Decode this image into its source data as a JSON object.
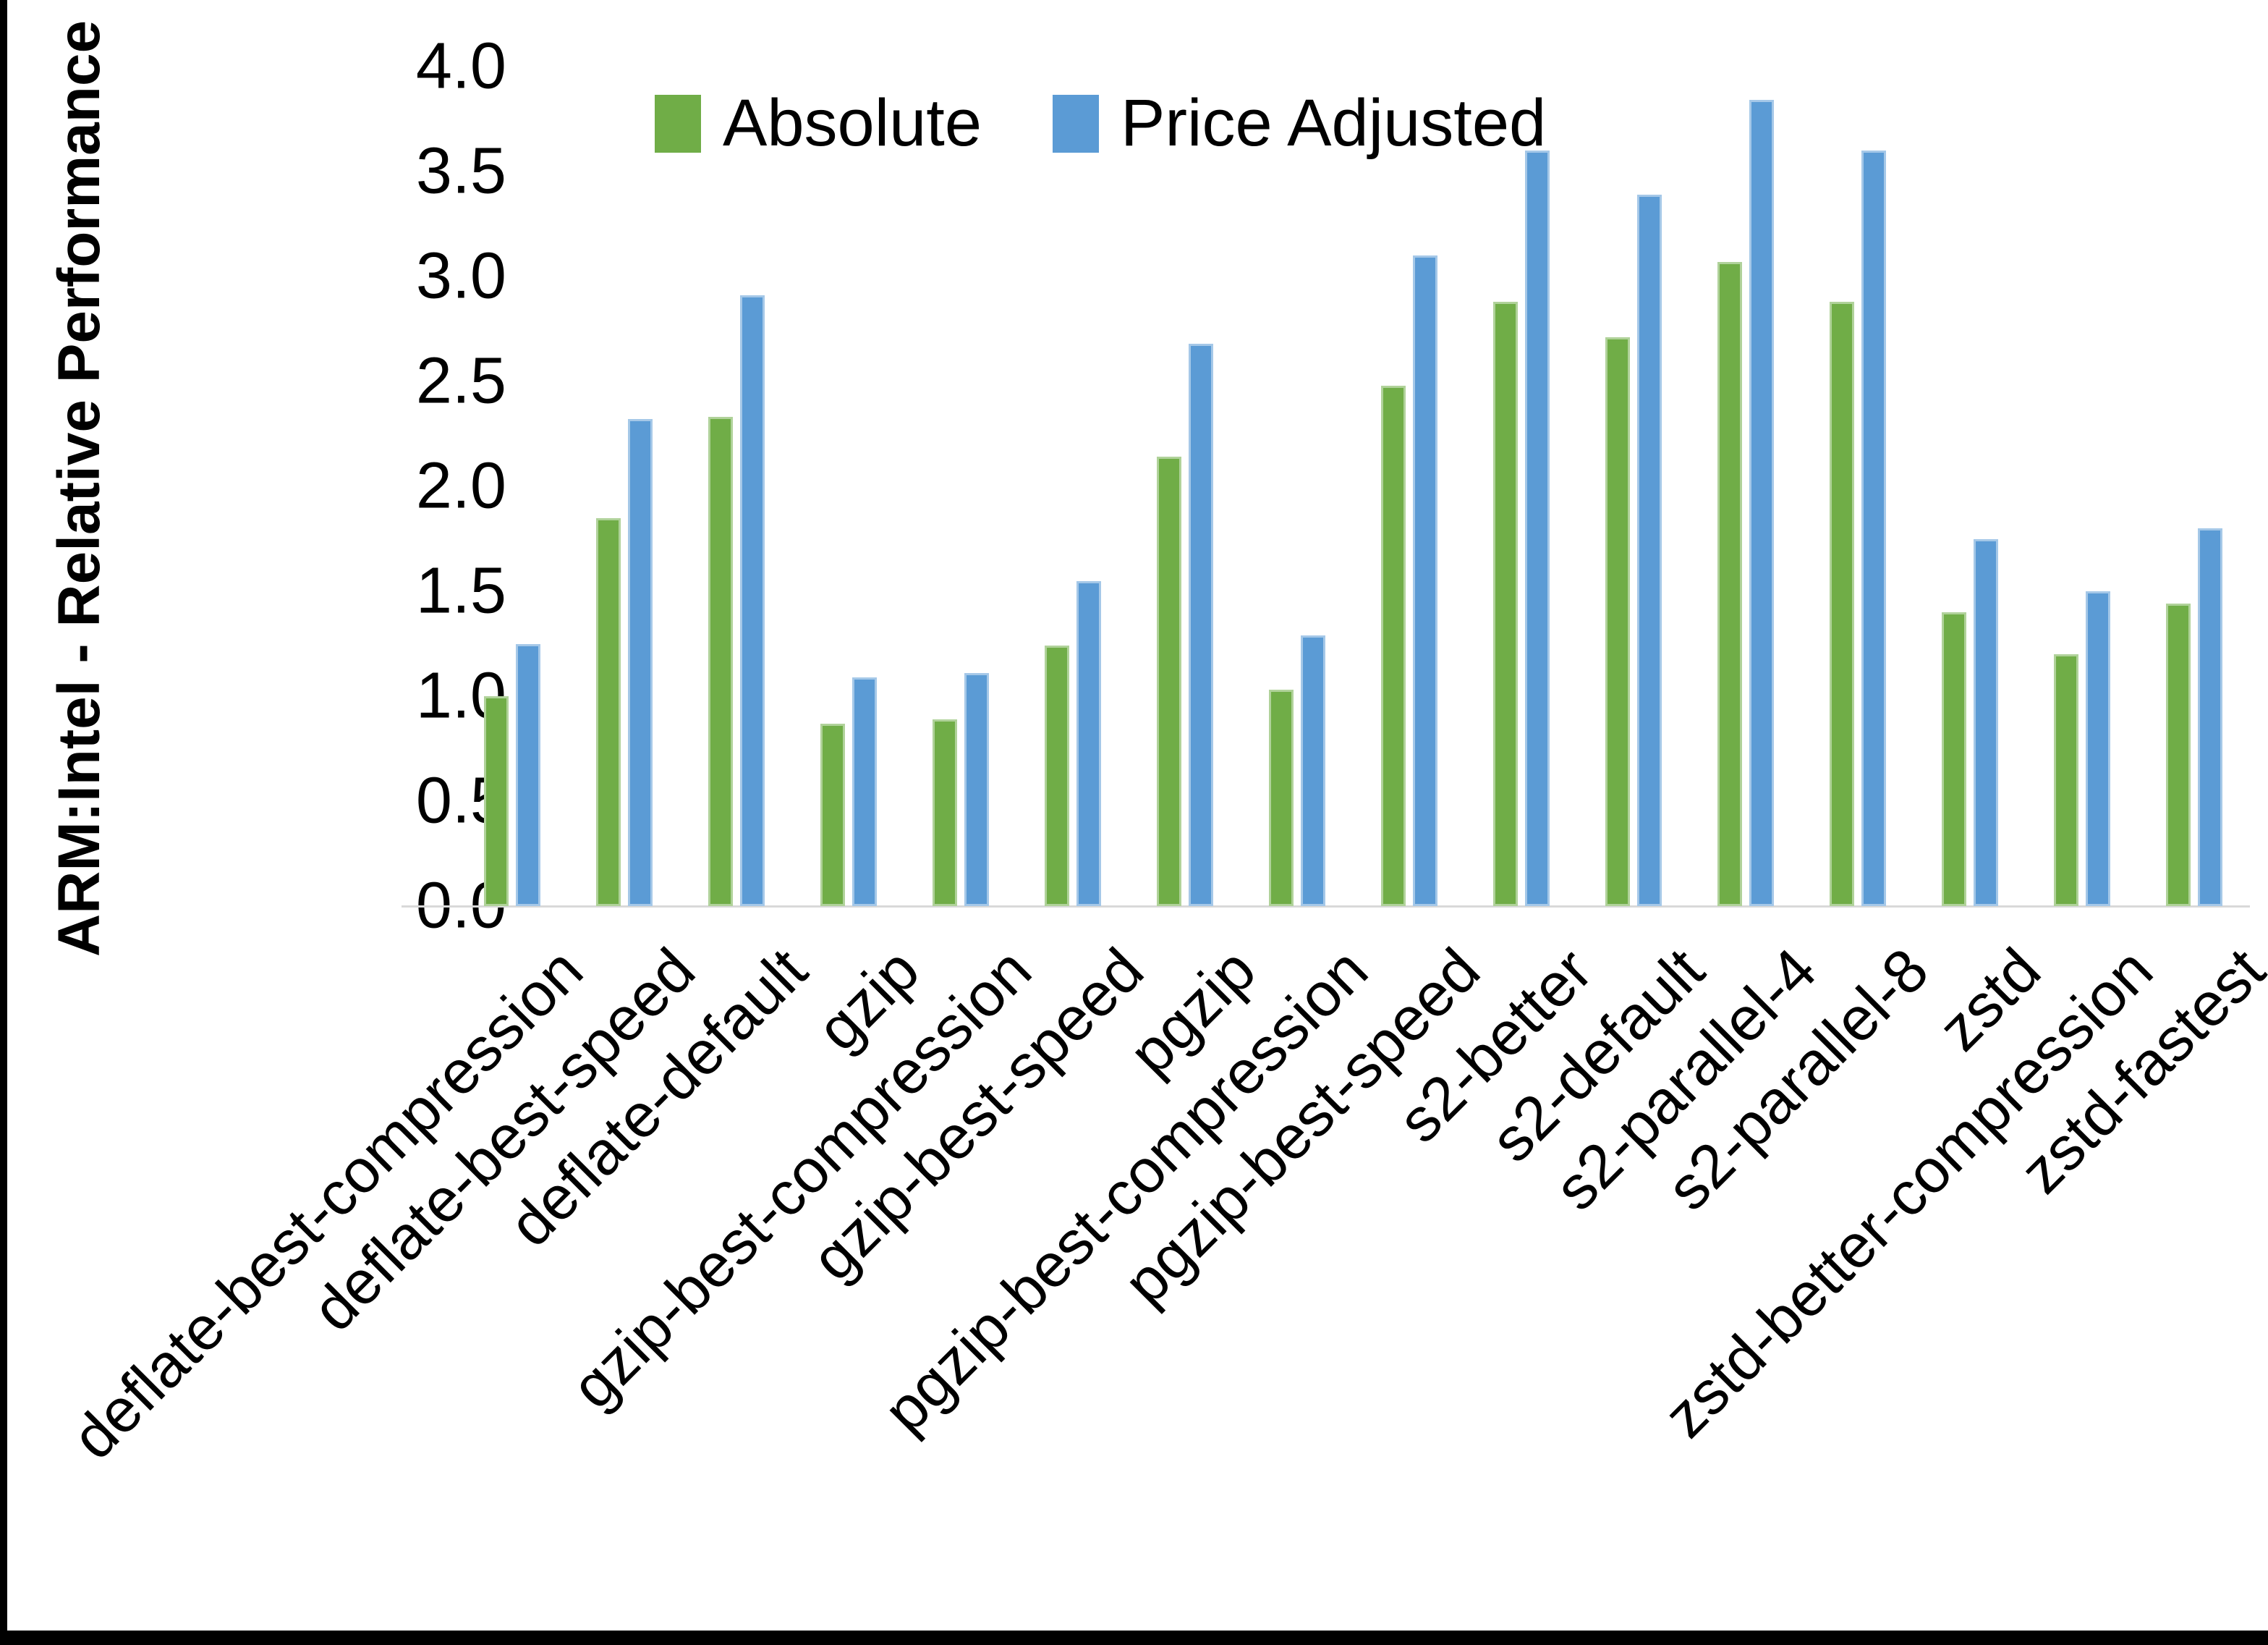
{
  "y_axis": {
    "title": "ARM:Intel - Relative Performance",
    "tick_labels": [
      "4.0",
      "3.5",
      "3.0",
      "2.5",
      "2.0",
      "1.5",
      "1.0",
      "0.5",
      "0.0"
    ]
  },
  "legend": {
    "items": [
      {
        "label": "Absolute",
        "color": "#70AD47"
      },
      {
        "label": "Price Adjusted",
        "color": "#5B9BD5"
      }
    ]
  },
  "colors": {
    "absolute": "#70AD47",
    "price_adjusted": "#5B9BD5",
    "axis_line": "#d9d9d9",
    "frame": "#000000"
  },
  "chart_data": {
    "type": "bar",
    "title": "",
    "xlabel": "",
    "ylabel": "ARM:Intel - Relative Performance",
    "ylim": [
      0.0,
      4.0
    ],
    "ytick_step": 0.5,
    "grid": false,
    "legend_position": "top",
    "categories": [
      "deflate-best-compression",
      "deflate-best-speed",
      "deflate-default",
      "gzip",
      "gzip-best-compression",
      "gzip-best-speed",
      "pgzip",
      "pgzip-best-compression",
      "pgzip-best-speed",
      "s2-better",
      "s2-default",
      "s2-parallel-4",
      "s2-parallel-8",
      "zstd",
      "zstd-better-compression",
      "zstd-fastest"
    ],
    "series": [
      {
        "name": "Absolute",
        "color": "#70AD47",
        "values": [
          1.0,
          1.85,
          2.33,
          0.87,
          0.89,
          1.24,
          2.14,
          1.03,
          2.48,
          2.88,
          2.71,
          3.07,
          2.88,
          1.4,
          1.2,
          1.44
        ]
      },
      {
        "name": "Price Adjusted",
        "color": "#5B9BD5",
        "values": [
          1.25,
          2.32,
          2.91,
          1.09,
          1.11,
          1.55,
          2.68,
          1.29,
          3.1,
          3.6,
          3.39,
          3.84,
          3.6,
          1.75,
          1.5,
          1.8
        ]
      }
    ]
  }
}
